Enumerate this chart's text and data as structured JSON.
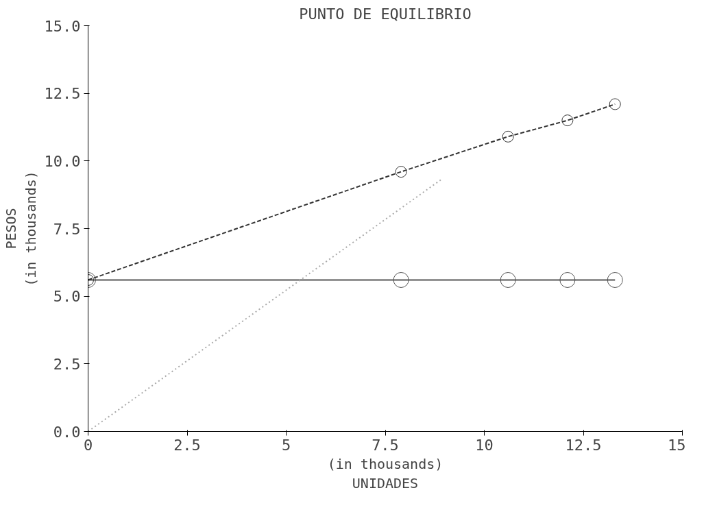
{
  "chart_data": {
    "type": "line",
    "title": "PUNTO DE EQUILIBRIO",
    "xlabel": "(in thousands)\nUNIDADES",
    "ylabel": "PESOS\n(in thousands)",
    "xlim": [
      0,
      15
    ],
    "ylim": [
      0,
      15
    ],
    "xticks": [
      0,
      2.5,
      5,
      7.5,
      10,
      12.5,
      15
    ],
    "yticks": [
      {
        "value": 0,
        "label": "0.0"
      },
      {
        "value": 2.5,
        "label": "2.5"
      },
      {
        "value": 5,
        "label": "5.0"
      },
      {
        "value": 7.5,
        "label": "7.5"
      },
      {
        "value": 10,
        "label": "10.0"
      },
      {
        "value": 12.5,
        "label": "12.5"
      },
      {
        "value": 15,
        "label": "15.0"
      }
    ],
    "grid": false,
    "marker": "circle",
    "series": [
      {
        "color": "#555555",
        "line_style": "solid",
        "x": [
          0,
          7.9,
          10.6,
          12.1,
          13.3
        ],
        "values": [
          5.6,
          5.6,
          5.6,
          5.6,
          5.6
        ]
      },
      {
        "color": "#333333",
        "line_style": "dashed",
        "x": [
          0,
          7.9,
          10.6,
          12.1,
          13.3
        ],
        "values": [
          5.6,
          9.6,
          10.9,
          11.5,
          12.1
        ]
      },
      {
        "color": "#aaaaaa",
        "line_style": "dotted",
        "marker": "none",
        "x": [
          0,
          8.9
        ],
        "values": [
          0,
          9.3
        ]
      }
    ]
  }
}
